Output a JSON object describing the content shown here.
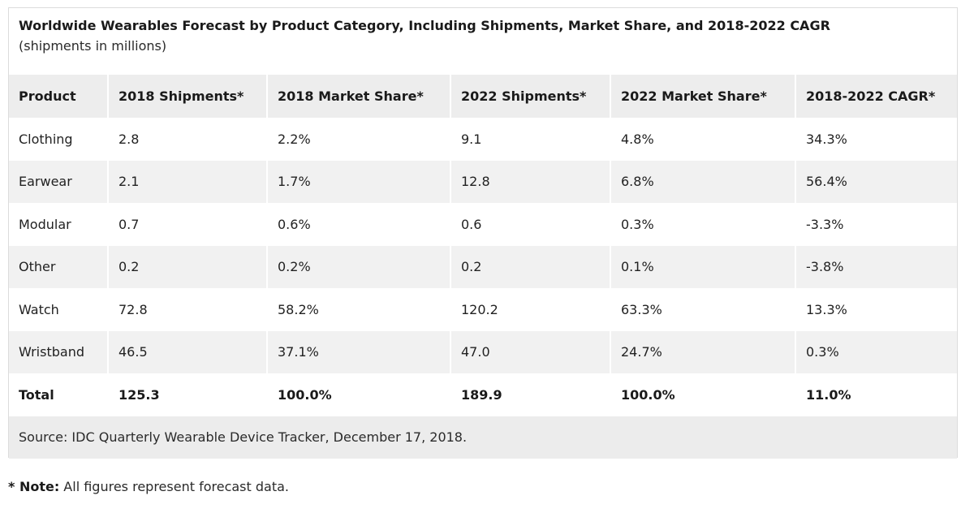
{
  "chart_data": {
    "type": "table",
    "title": "Worldwide Wearables Forecast by Product Category, Including Shipments, Market Share, and 2018-2022 CAGR",
    "subtitle": "(shipments in millions)",
    "columns": [
      "Product",
      "2018 Shipments*",
      "2018 Market Share*",
      "2022 Shipments*",
      "2022 Market Share*",
      "2018-2022 CAGR*"
    ],
    "rows": [
      [
        "Clothing",
        "2.8",
        "2.2%",
        "9.1",
        "4.8%",
        "34.3%"
      ],
      [
        "Earwear",
        "2.1",
        "1.7%",
        "12.8",
        "6.8%",
        "56.4%"
      ],
      [
        "Modular",
        "0.7",
        "0.6%",
        "0.6",
        "0.3%",
        "-3.3%"
      ],
      [
        "Other",
        "0.2",
        "0.2%",
        "0.2",
        "0.1%",
        "-3.8%"
      ],
      [
        "Watch",
        "72.8",
        "58.2%",
        "120.2",
        "63.3%",
        "13.3%"
      ],
      [
        "Wristband",
        "46.5",
        "37.1%",
        "47.0",
        "24.7%",
        "0.3%"
      ]
    ],
    "total": [
      "Total",
      "125.3",
      "100.0%",
      "189.9",
      "100.0%",
      "11.0%"
    ],
    "source": "Source: IDC Quarterly Wearable Device Tracker, December 17, 2018."
  },
  "note": {
    "label": "* Note:",
    "text": " All figures represent forecast data."
  }
}
